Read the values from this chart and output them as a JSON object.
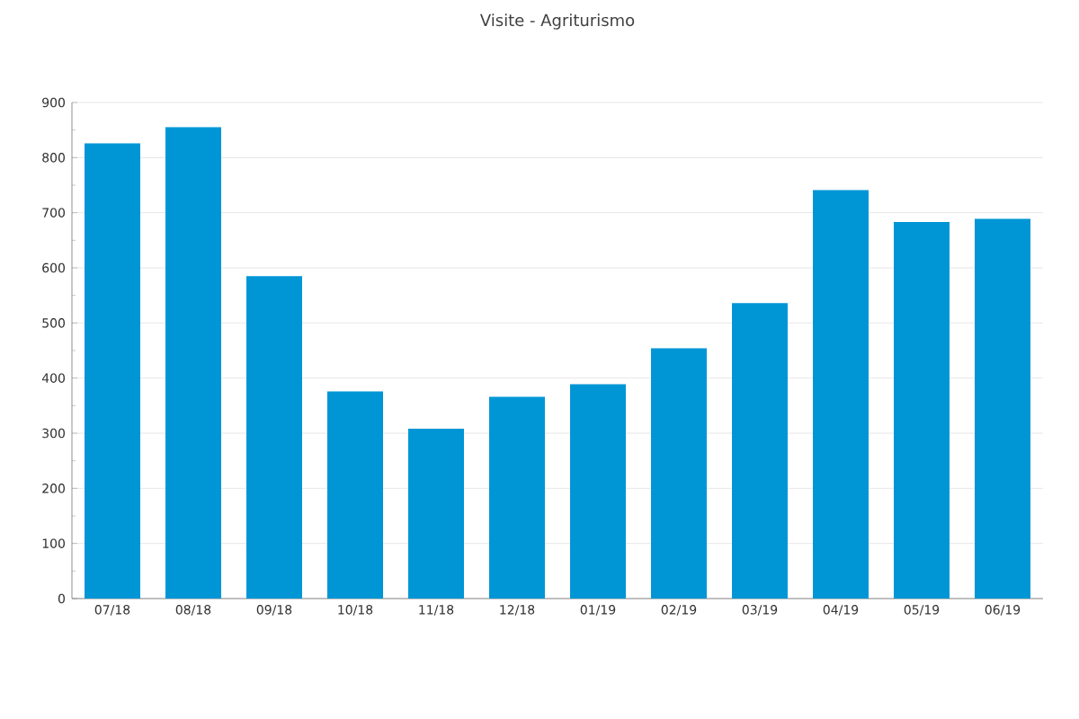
{
  "chart_data": {
    "type": "bar",
    "title": "Visite - Agriturismo",
    "categories": [
      "07/18",
      "08/18",
      "09/18",
      "10/18",
      "11/18",
      "12/18",
      "01/19",
      "02/19",
      "03/19",
      "04/19",
      "05/19",
      "06/19"
    ],
    "values": [
      826,
      855,
      585,
      376,
      308,
      366,
      389,
      454,
      536,
      741,
      683,
      689
    ],
    "color": "#0096d6",
    "ylim": [
      0,
      900
    ],
    "yticks": [
      0,
      100,
      200,
      300,
      400,
      500,
      600,
      700,
      800,
      900
    ],
    "grid": "y"
  }
}
